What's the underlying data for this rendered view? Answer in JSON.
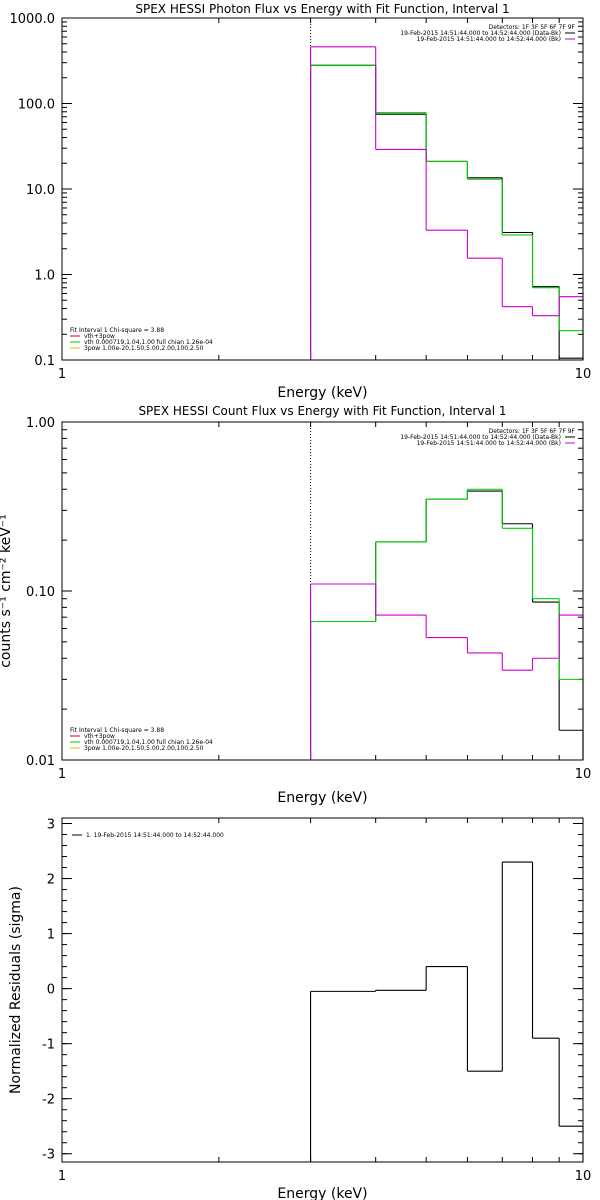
{
  "chart_data": [
    {
      "type": "line",
      "title": "SPEX HESSI Photon Flux vs Energy with Fit Function, Interval 1",
      "xlabel": "Energy (keV)",
      "ylabel": "",
      "x_scale": "log",
      "y_scale": "log",
      "xlim": [
        1,
        10
      ],
      "ylim": [
        0.1,
        1000
      ],
      "x_ticks": [
        {
          "v": 1,
          "label": "1"
        },
        {
          "v": 10,
          "label": "10"
        }
      ],
      "y_ticks": [
        {
          "v": 0.1,
          "label": "0.1"
        },
        {
          "v": 1,
          "label": "1.0"
        },
        {
          "v": 10,
          "label": "10.0"
        },
        {
          "v": 100,
          "label": "100.0"
        },
        {
          "v": 1000,
          "label": "1000.0"
        }
      ],
      "vline_x": 3,
      "bin_edges": [
        3,
        4,
        5,
        6,
        7,
        8,
        9,
        10
      ],
      "series": [
        {
          "key": "data",
          "color": "#000000",
          "values": [
            280,
            75,
            21,
            13.5,
            3.1,
            0.72,
            0.105
          ]
        },
        {
          "key": "fit_total",
          "color": "#00cc00",
          "values": [
            280,
            78,
            21,
            13,
            2.9,
            0.7,
            0.22
          ]
        },
        {
          "key": "background",
          "color": "#cc00cc",
          "values": [
            460,
            29,
            3.3,
            1.55,
            0.42,
            0.33,
            0.55
          ]
        }
      ],
      "legend_tr": [
        {
          "text": "Detectors: 1F 3F 5F 6F 7F 9F",
          "color": "#000000",
          "swatch": false
        },
        {
          "text": "19-Feb-2015 14:51:44.000 to 14:52:44.000 (Data-Bk)",
          "color": "#000000",
          "swatch": true
        },
        {
          "text": "19-Feb-2015 14:51:44.000 to 14:52:44.000 (Bk)",
          "color": "#cc00cc",
          "swatch": true
        }
      ],
      "legend_bl": [
        {
          "text": "Fit Interval 1    Chi-square = 3.88",
          "color": "#000000",
          "swatch": false
        },
        {
          "text": "vth+3pow",
          "color": "#cc0000",
          "swatch": true
        },
        {
          "text": "vth 0.000719,1.04,1.00  full chian 1.26e-04",
          "color": "#00cc00",
          "swatch": true
        },
        {
          "text": "3pow 1.00e-20,1.50,5.00,2.00,100,2.50",
          "color": "#cccc00",
          "swatch": true
        }
      ]
    },
    {
      "type": "line",
      "title": "SPEX HESSI Count Flux vs Energy with Fit Function, Interval 1",
      "xlabel": "Energy (keV)",
      "ylabel": "counts s⁻¹ cm⁻² keV⁻¹",
      "x_scale": "log",
      "y_scale": "log",
      "xlim": [
        1,
        10
      ],
      "ylim": [
        0.01,
        1
      ],
      "x_ticks": [
        {
          "v": 1,
          "label": "1"
        },
        {
          "v": 10,
          "label": "10"
        }
      ],
      "y_ticks": [
        {
          "v": 0.01,
          "label": "0.01"
        },
        {
          "v": 0.1,
          "label": "0.10"
        },
        {
          "v": 1,
          "label": "1.00"
        }
      ],
      "vline_x": 3,
      "bin_edges": [
        3,
        4,
        5,
        6,
        7,
        8,
        9,
        10
      ],
      "series": [
        {
          "key": "data",
          "color": "#000000",
          "values": [
            0.066,
            0.195,
            0.35,
            0.39,
            0.25,
            0.086,
            0.015
          ]
        },
        {
          "key": "fit_total",
          "color": "#00cc00",
          "values": [
            0.066,
            0.195,
            0.35,
            0.4,
            0.235,
            0.09,
            0.03
          ]
        },
        {
          "key": "background",
          "color": "#cc00cc",
          "values": [
            0.11,
            0.072,
            0.053,
            0.043,
            0.034,
            0.04,
            0.072
          ]
        }
      ],
      "legend_tr": [
        {
          "text": "Detectors: 1F 3F 5F 6F 7F 9F",
          "color": "#000000",
          "swatch": false
        },
        {
          "text": "19-Feb-2015 14:51:44.000 to 14:52:44.000 (Data-Bk)",
          "color": "#000000",
          "swatch": true
        },
        {
          "text": "19-Feb-2015 14:51:44.000 to 14:52:44.000 (Bk)",
          "color": "#cc00cc",
          "swatch": true
        }
      ],
      "legend_bl": [
        {
          "text": "Fit Interval 1    Chi-square = 3.88",
          "color": "#000000",
          "swatch": false
        },
        {
          "text": "vth+3pow",
          "color": "#cc0000",
          "swatch": true
        },
        {
          "text": "vth 0.000719,1.04,1.00  full chian 1.26e-04",
          "color": "#00cc00",
          "swatch": true
        },
        {
          "text": "3pow 1.00e-20,1.50,5.00,2.00,100,2.50",
          "color": "#cccc00",
          "swatch": true
        }
      ]
    },
    {
      "type": "line",
      "title": "",
      "xlabel": "Energy (keV)",
      "ylabel": "Normalized Residuals (sigma)",
      "x_scale": "log",
      "y_scale": "linear",
      "xlim": [
        1,
        10
      ],
      "ylim": [
        -3.15,
        3.1
      ],
      "x_ticks": [
        {
          "v": 1,
          "label": "1"
        },
        {
          "v": 10,
          "label": "10"
        }
      ],
      "y_ticks": [
        {
          "v": -3,
          "label": "-3"
        },
        {
          "v": -2,
          "label": "-2"
        },
        {
          "v": -1,
          "label": "-1"
        },
        {
          "v": 0,
          "label": "0"
        },
        {
          "v": 1,
          "label": "1"
        },
        {
          "v": 2,
          "label": "2"
        },
        {
          "v": 3,
          "label": "3"
        }
      ],
      "vline_x": null,
      "bin_edges": [
        3,
        4,
        5,
        6,
        7,
        8,
        9,
        10
      ],
      "series": [
        {
          "key": "residuals",
          "color": "#000000",
          "values": [
            -0.05,
            -0.03,
            0.4,
            -1.5,
            2.3,
            -0.9,
            -2.5
          ]
        }
      ],
      "legend_tr": [],
      "legend_bl": [],
      "legend_tl": [
        {
          "text": "1. 19-Feb-2015 14:51:44.000 to 14:52:44.000",
          "color": "#000000",
          "swatch": true
        }
      ]
    }
  ]
}
